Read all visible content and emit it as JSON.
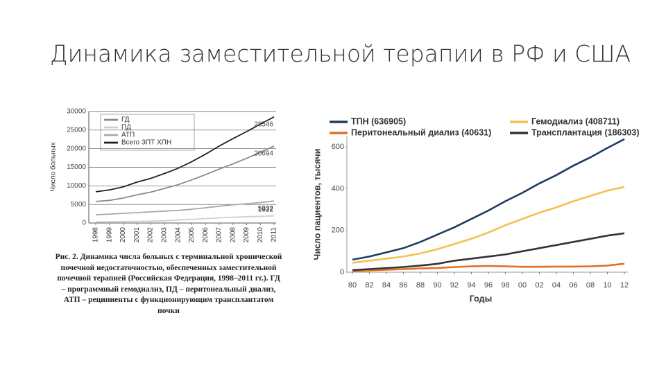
{
  "slide_title": "Динамика заместительной терапии в РФ и США",
  "chart_data": [
    {
      "type": "line",
      "y_label": "Число больных",
      "categories": [
        "1998",
        "1999",
        "2000",
        "2001",
        "2002",
        "2003",
        "2004",
        "2005",
        "2006",
        "2007",
        "2008",
        "2009",
        "2010",
        "2011"
      ],
      "ylim": [
        0,
        30000
      ],
      "yticks": [
        0,
        5000,
        10000,
        15000,
        20000,
        25000,
        30000
      ],
      "grid": true,
      "series": [
        {
          "name": "ГД",
          "color": "#8a8a8a",
          "values": [
            5800,
            6100,
            6700,
            7600,
            8300,
            9300,
            10300,
            11600,
            13000,
            14500,
            15900,
            17400,
            19000,
            20694
          ]
        },
        {
          "name": "ПД",
          "color": "#cfcfcf",
          "values": [
            300,
            350,
            400,
            450,
            500,
            600,
            800,
            1000,
            1200,
            1400,
            1550,
            1700,
            1800,
            1922
          ]
        },
        {
          "name": "АТП",
          "color": "#a8a8a8",
          "values": [
            2200,
            2400,
            2600,
            2800,
            3000,
            3200,
            3400,
            3700,
            4100,
            4500,
            4900,
            5200,
            5500,
            5932
          ]
        },
        {
          "name": "Всего ЗПТ ХПН",
          "color": "#222222",
          "values": [
            8400,
            8900,
            9700,
            11000,
            12000,
            13300,
            14700,
            16500,
            18500,
            20700,
            22700,
            24600,
            26600,
            28546
          ]
        }
      ],
      "caption": "Рис. 2. Динамика числа больных с терминальной хронической почечной недостаточностью, обеспеченных заместительной почечной терапией (Российская Федерация, 1998–2011 гг.). ГД – программный гемодиализ, ПД – перитонеальный диализ, АТП – реципиенты с функционирующим трансплантатом почки"
    },
    {
      "type": "line",
      "x_label": "Годы",
      "y_label": "Число пациентов, тысячи",
      "categories": [
        "80",
        "82",
        "84",
        "86",
        "88",
        "90",
        "92",
        "94",
        "96",
        "98",
        "00",
        "02",
        "04",
        "06",
        "08",
        "10",
        "12"
      ],
      "ylim": [
        0,
        650
      ],
      "yticks": [
        0,
        200,
        400,
        600
      ],
      "grid": false,
      "series": [
        {
          "name": "ТПН (636905)",
          "color": "#1f3a60",
          "values": [
            60,
            75,
            95,
            115,
            145,
            180,
            215,
            255,
            295,
            340,
            380,
            425,
            465,
            510,
            550,
            595,
            636.905
          ]
        },
        {
          "name": "Гемодиализ (408711)",
          "color": "#f2c14e",
          "values": [
            45,
            55,
            65,
            75,
            90,
            110,
            135,
            160,
            190,
            225,
            255,
            285,
            310,
            340,
            365,
            390,
            408.711
          ]
        },
        {
          "name": "Перитонеальный диализ (40631)",
          "color": "#e07020",
          "values": [
            5,
            8,
            12,
            15,
            18,
            20,
            25,
            28,
            30,
            28,
            26,
            26,
            27,
            27,
            28,
            32,
            40.631
          ]
        },
        {
          "name": "Трансплантация (186303)",
          "color": "#333333",
          "values": [
            10,
            15,
            20,
            25,
            32,
            40,
            55,
            65,
            75,
            85,
            100,
            115,
            130,
            145,
            160,
            175,
            186.303
          ]
        }
      ]
    }
  ]
}
